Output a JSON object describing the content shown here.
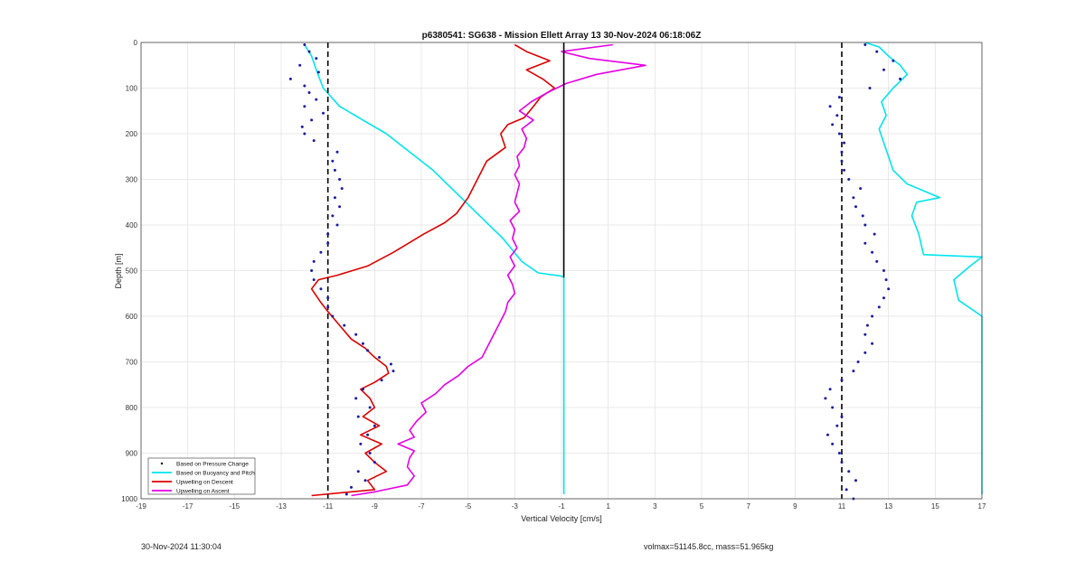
{
  "footer": {
    "timestamp": "30-Nov-2024 11:30:04",
    "volmax_mass": "volmax=51145.8cc, mass=51.965kg"
  },
  "chart_data": {
    "type": "line",
    "title": "p6380541: SG638 - Mission Ellett Array 13 30-Nov-2024 06:18:06Z",
    "xlabel": "Vertical Velocity [cm/s]",
    "ylabel": "Depth [m]",
    "xlim": [
      -19,
      17
    ],
    "ylim": [
      1000,
      0
    ],
    "y_reversed": true,
    "grid": true,
    "x_ticks": [
      -19,
      -17,
      -15,
      -13,
      -11,
      -9,
      -7,
      -5,
      -3,
      -1,
      1,
      3,
      5,
      7,
      9,
      11,
      13,
      15,
      17
    ],
    "y_ticks": [
      0,
      100,
      200,
      300,
      400,
      500,
      600,
      700,
      800,
      900,
      1000
    ],
    "legend_position": "bottom-left",
    "reference_lines": [
      {
        "x": -11,
        "style": "dashed",
        "color": "#000000"
      },
      {
        "x": 11,
        "style": "dashed",
        "color": "#000000"
      },
      {
        "x": -0.9,
        "y_range": [
          0,
          515
        ],
        "style": "solid",
        "color": "#000000"
      }
    ],
    "series": [
      {
        "name": "Based on Pressure Change",
        "style": "markers",
        "color": "#1a1aa6",
        "points_descent": [
          [
            -12.0,
            5
          ],
          [
            -11.8,
            20
          ],
          [
            -11.5,
            35
          ],
          [
            -12.2,
            50
          ],
          [
            -11.4,
            65
          ],
          [
            -12.6,
            80
          ],
          [
            -12.0,
            95
          ],
          [
            -11.8,
            110
          ],
          [
            -11.5,
            125
          ],
          [
            -12.0,
            140
          ],
          [
            -11.2,
            155
          ],
          [
            -11.7,
            170
          ],
          [
            -12.1,
            185
          ],
          [
            -12.0,
            200
          ],
          [
            -11.6,
            215
          ],
          [
            -10.6,
            240
          ],
          [
            -10.8,
            260
          ],
          [
            -10.7,
            280
          ],
          [
            -10.5,
            300
          ],
          [
            -10.4,
            320
          ],
          [
            -10.7,
            340
          ],
          [
            -10.5,
            360
          ],
          [
            -10.8,
            380
          ],
          [
            -10.6,
            400
          ],
          [
            -11.0,
            420
          ],
          [
            -11.0,
            440
          ],
          [
            -11.3,
            460
          ],
          [
            -11.6,
            480
          ],
          [
            -11.7,
            500
          ],
          [
            -11.6,
            520
          ],
          [
            -11.3,
            540
          ],
          [
            -11.0,
            560
          ],
          [
            -11.0,
            580
          ],
          [
            -10.8,
            600
          ],
          [
            -10.3,
            620
          ],
          [
            -9.8,
            640
          ],
          [
            -9.5,
            660
          ],
          [
            -9.3,
            675
          ],
          [
            -8.8,
            690
          ],
          [
            -8.3,
            705
          ],
          [
            -8.2,
            720
          ],
          [
            -8.7,
            740
          ],
          [
            -9.5,
            760
          ],
          [
            -9.8,
            780
          ],
          [
            -9.2,
            800
          ],
          [
            -9.7,
            820
          ],
          [
            -9.0,
            840
          ],
          [
            -9.3,
            860
          ],
          [
            -9.6,
            880
          ],
          [
            -9.2,
            900
          ],
          [
            -9.0,
            920
          ],
          [
            -9.7,
            940
          ],
          [
            -9.4,
            960
          ],
          [
            -10.0,
            975
          ],
          [
            -10.2,
            990
          ]
        ],
        "points_ascent": [
          [
            11.5,
            1000
          ],
          [
            11.2,
            980
          ],
          [
            11.6,
            960
          ],
          [
            11.3,
            940
          ],
          [
            11.0,
            920
          ],
          [
            10.9,
            900
          ],
          [
            10.6,
            880
          ],
          [
            10.4,
            860
          ],
          [
            10.8,
            840
          ],
          [
            11.0,
            820
          ],
          [
            10.6,
            800
          ],
          [
            10.3,
            780
          ],
          [
            10.5,
            760
          ],
          [
            11.0,
            740
          ],
          [
            11.5,
            720
          ],
          [
            11.7,
            700
          ],
          [
            12.0,
            680
          ],
          [
            12.3,
            660
          ],
          [
            12.0,
            640
          ],
          [
            12.1,
            620
          ],
          [
            12.3,
            600
          ],
          [
            12.6,
            580
          ],
          [
            12.8,
            560
          ],
          [
            13.0,
            540
          ],
          [
            12.9,
            520
          ],
          [
            12.8,
            500
          ],
          [
            12.5,
            480
          ],
          [
            12.3,
            460
          ],
          [
            12.0,
            440
          ],
          [
            12.4,
            420
          ],
          [
            12.0,
            400
          ],
          [
            11.9,
            380
          ],
          [
            11.6,
            360
          ],
          [
            11.5,
            340
          ],
          [
            11.8,
            320
          ],
          [
            11.3,
            300
          ],
          [
            11.1,
            280
          ],
          [
            11.0,
            260
          ],
          [
            11.0,
            240
          ],
          [
            11.1,
            220
          ],
          [
            10.9,
            200
          ],
          [
            10.6,
            180
          ],
          [
            10.8,
            160
          ],
          [
            10.5,
            140
          ],
          [
            10.9,
            120
          ],
          [
            12.2,
            100
          ],
          [
            13.5,
            80
          ],
          [
            12.8,
            60
          ],
          [
            13.2,
            40
          ],
          [
            12.5,
            20
          ],
          [
            12.0,
            5
          ]
        ]
      },
      {
        "name": "Based on Buoyancy and Pitch",
        "style": "line",
        "color": "#00e5ee",
        "points_descent": [
          [
            -12.0,
            5
          ],
          [
            -11.7,
            30
          ],
          [
            -11.5,
            60
          ],
          [
            -11.2,
            100
          ],
          [
            -10.5,
            140
          ],
          [
            -9.5,
            170
          ],
          [
            -8.5,
            200
          ],
          [
            -7.5,
            240
          ],
          [
            -6.5,
            280
          ],
          [
            -5.5,
            330
          ],
          [
            -4.5,
            380
          ],
          [
            -3.5,
            430
          ],
          [
            -2.7,
            480
          ],
          [
            -2.0,
            505
          ],
          [
            -1.0,
            512
          ],
          [
            -0.9,
            515
          ],
          [
            -0.9,
            600
          ],
          [
            -0.9,
            700
          ],
          [
            -0.9,
            800
          ],
          [
            -0.9,
            900
          ],
          [
            -0.9,
            990
          ]
        ],
        "points_ascent": [
          [
            17,
            990
          ],
          [
            17,
            755
          ],
          [
            17,
            660
          ],
          [
            17,
            600
          ],
          [
            16,
            565
          ],
          [
            15.8,
            520
          ],
          [
            16.5,
            490
          ],
          [
            17,
            470
          ],
          [
            14.5,
            465
          ],
          [
            14.3,
            420
          ],
          [
            14.0,
            380
          ],
          [
            14.2,
            350
          ],
          [
            15.2,
            340
          ],
          [
            13.8,
            310
          ],
          [
            13.2,
            280
          ],
          [
            13.0,
            250
          ],
          [
            12.8,
            220
          ],
          [
            12.6,
            190
          ],
          [
            12.9,
            160
          ],
          [
            12.7,
            130
          ],
          [
            13.2,
            100
          ],
          [
            13.8,
            70
          ],
          [
            13.5,
            50
          ],
          [
            13.0,
            30
          ],
          [
            12.6,
            10
          ],
          [
            12.0,
            0
          ]
        ]
      },
      {
        "name": "Upwelling on Descent",
        "style": "line",
        "color": "#dd0000",
        "points": [
          [
            -3.0,
            5
          ],
          [
            -2.5,
            20
          ],
          [
            -1.5,
            40
          ],
          [
            -2.5,
            60
          ],
          [
            -1.8,
            80
          ],
          [
            -1.3,
            100
          ],
          [
            -1.9,
            120
          ],
          [
            -2.2,
            140
          ],
          [
            -2.6,
            165
          ],
          [
            -3.3,
            180
          ],
          [
            -3.6,
            200
          ],
          [
            -3.4,
            230
          ],
          [
            -4.2,
            260
          ],
          [
            -4.6,
            300
          ],
          [
            -5.0,
            340
          ],
          [
            -5.5,
            375
          ],
          [
            -6.0,
            395
          ],
          [
            -6.9,
            420
          ],
          [
            -8.2,
            460
          ],
          [
            -9.3,
            490
          ],
          [
            -10.6,
            510
          ],
          [
            -11.4,
            520
          ],
          [
            -11.7,
            540
          ],
          [
            -11.3,
            570
          ],
          [
            -11.0,
            590
          ],
          [
            -10.5,
            620
          ],
          [
            -10.0,
            650
          ],
          [
            -9.4,
            670
          ],
          [
            -9.0,
            690
          ],
          [
            -8.5,
            710
          ],
          [
            -8.4,
            725
          ],
          [
            -9.0,
            745
          ],
          [
            -9.6,
            760
          ],
          [
            -9.2,
            780
          ],
          [
            -9.0,
            800
          ],
          [
            -9.5,
            820
          ],
          [
            -8.8,
            840
          ],
          [
            -9.6,
            860
          ],
          [
            -8.7,
            880
          ],
          [
            -9.4,
            900
          ],
          [
            -9.0,
            920
          ],
          [
            -8.5,
            940
          ],
          [
            -9.3,
            960
          ],
          [
            -9.0,
            980
          ],
          [
            -11.7,
            993
          ]
        ]
      },
      {
        "name": "Upwelling on Ascent",
        "style": "line",
        "color": "#e600e6",
        "points": [
          [
            -10.0,
            993
          ],
          [
            -9.0,
            985
          ],
          [
            -7.6,
            970
          ],
          [
            -7.3,
            950
          ],
          [
            -7.6,
            930
          ],
          [
            -7.5,
            910
          ],
          [
            -7.3,
            895
          ],
          [
            -8.0,
            880
          ],
          [
            -7.3,
            865
          ],
          [
            -7.5,
            850
          ],
          [
            -7.2,
            830
          ],
          [
            -6.8,
            810
          ],
          [
            -7.0,
            790
          ],
          [
            -6.4,
            770
          ],
          [
            -6.0,
            750
          ],
          [
            -5.4,
            730
          ],
          [
            -5.0,
            710
          ],
          [
            -4.4,
            690
          ],
          [
            -4.2,
            670
          ],
          [
            -4.0,
            650
          ],
          [
            -3.8,
            630
          ],
          [
            -3.6,
            610
          ],
          [
            -3.4,
            590
          ],
          [
            -3.3,
            570
          ],
          [
            -3.0,
            550
          ],
          [
            -3.1,
            530
          ],
          [
            -3.3,
            510
          ],
          [
            -3.0,
            490
          ],
          [
            -3.2,
            470
          ],
          [
            -2.9,
            450
          ],
          [
            -3.1,
            430
          ],
          [
            -3.0,
            410
          ],
          [
            -3.2,
            390
          ],
          [
            -2.8,
            370
          ],
          [
            -3.0,
            350
          ],
          [
            -2.9,
            330
          ],
          [
            -2.8,
            310
          ],
          [
            -3.0,
            290
          ],
          [
            -2.8,
            270
          ],
          [
            -2.9,
            250
          ],
          [
            -2.6,
            230
          ],
          [
            -2.5,
            210
          ],
          [
            -2.7,
            190
          ],
          [
            -2.2,
            170
          ],
          [
            -2.8,
            150
          ],
          [
            -2.3,
            130
          ],
          [
            -1.6,
            110
          ],
          [
            -0.8,
            90
          ],
          [
            0.5,
            70
          ],
          [
            2.6,
            50
          ],
          [
            0.2,
            35
          ],
          [
            -1.0,
            20
          ],
          [
            1.2,
            5
          ]
        ]
      }
    ]
  }
}
